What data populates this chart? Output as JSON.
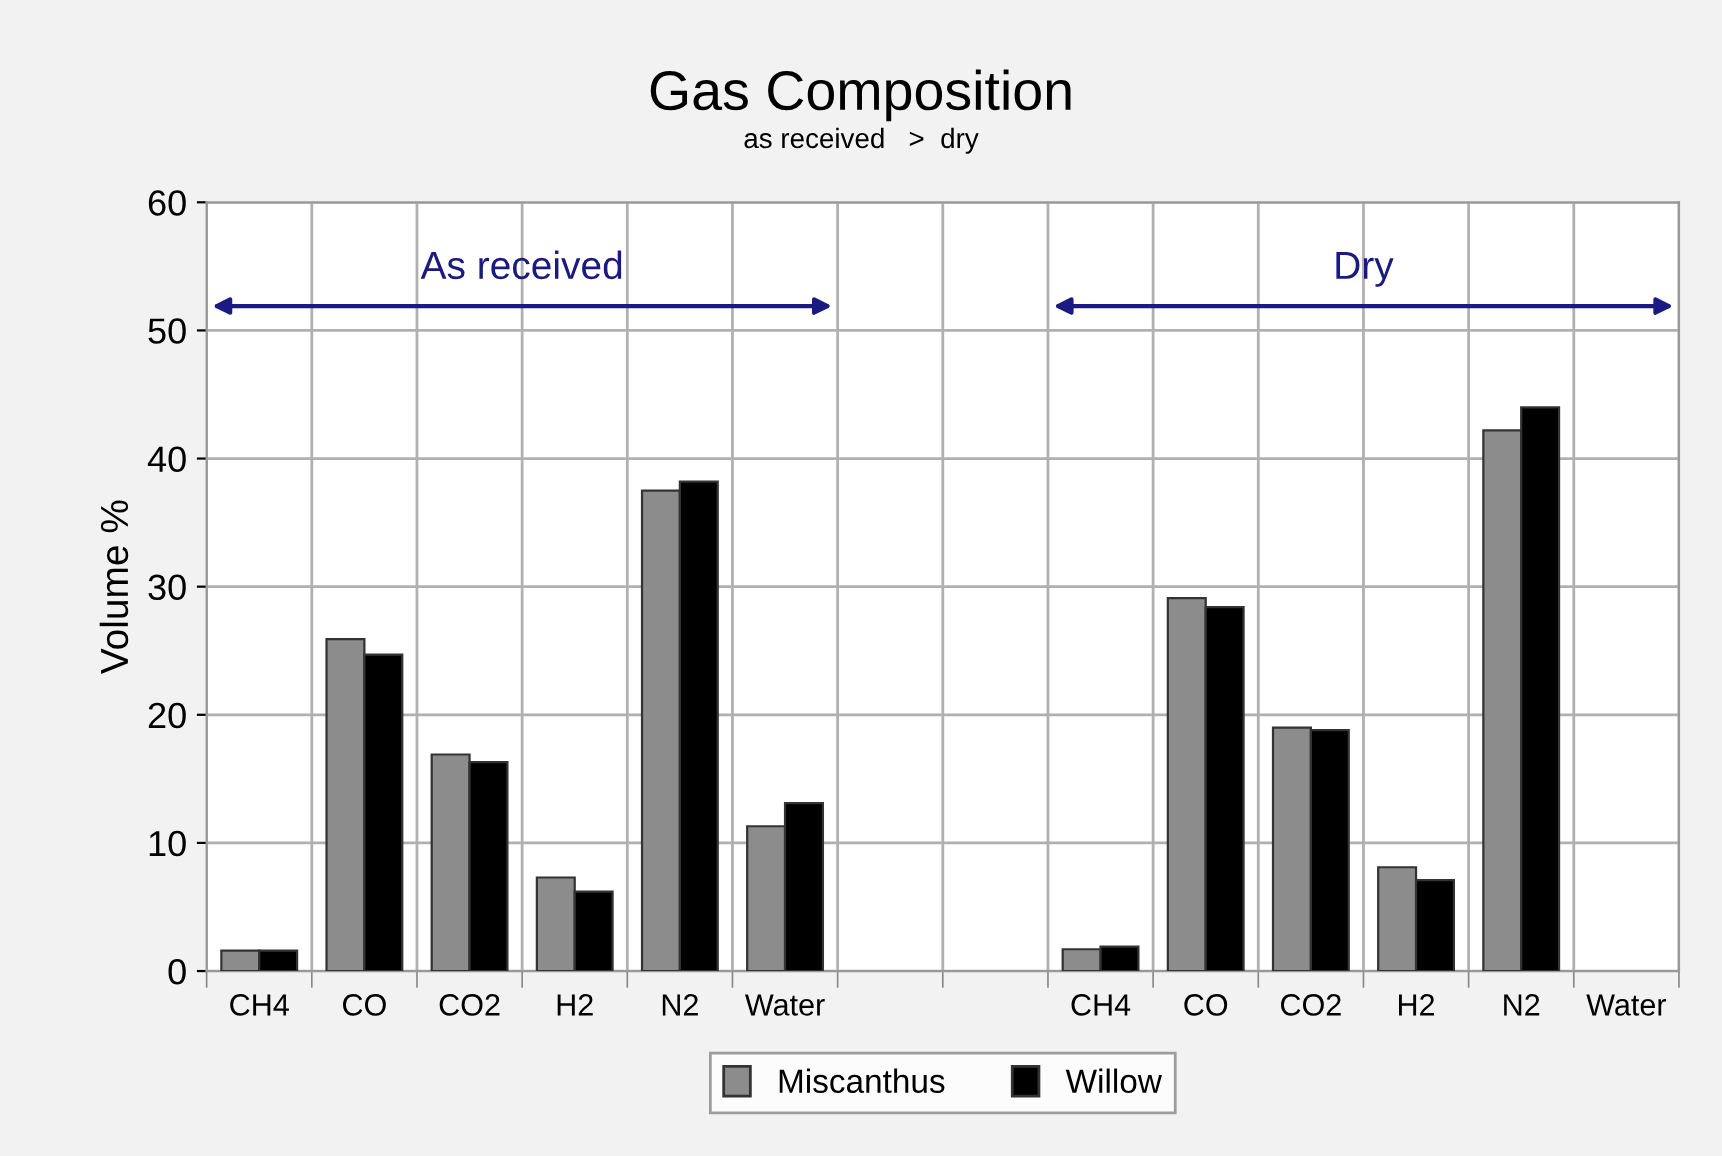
{
  "chart_data": {
    "type": "bar",
    "title": "Gas Composition",
    "subtitle": "as received   >  dry",
    "ylabel": "Volume %",
    "categories": [
      "CH4",
      "CO",
      "CO2",
      "H2",
      "N2",
      "Water",
      null,
      null,
      "CH4",
      "CO",
      "CO2",
      "H2",
      "N2",
      "Water"
    ],
    "series": [
      {
        "name": "Miscanthus",
        "color": "#8c8c8c",
        "values": [
          1.6,
          25.9,
          16.9,
          7.3,
          37.5,
          11.3,
          null,
          null,
          1.7,
          29.1,
          19.0,
          8.1,
          42.2,
          null
        ]
      },
      {
        "name": "Willow",
        "color": "#000000",
        "values": [
          1.6,
          24.7,
          16.3,
          6.2,
          38.2,
          13.1,
          null,
          null,
          1.9,
          28.4,
          18.8,
          7.1,
          44.0,
          null
        ]
      }
    ],
    "annotations": [
      "As received",
      "Dry"
    ],
    "ylim": [
      0,
      60
    ],
    "yticks": [
      0,
      10,
      20,
      30,
      40,
      50,
      60
    ],
    "grid": true,
    "legend": "bottom"
  }
}
